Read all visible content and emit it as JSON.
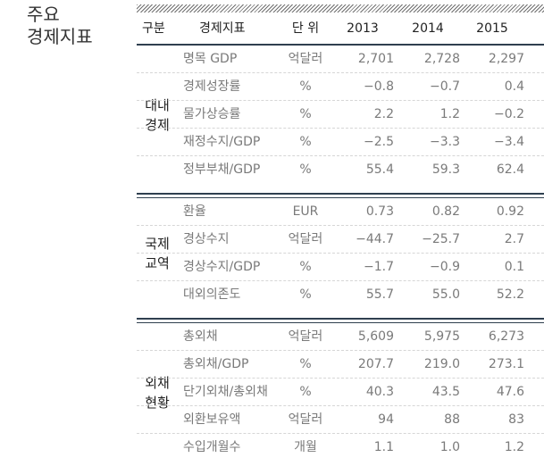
{
  "side_title": [
    "주요",
    "경제지표"
  ],
  "header": {
    "group": "구분",
    "indicator": "경제지표",
    "unit": "단 위",
    "years": [
      "2013",
      "2014",
      "2015"
    ]
  },
  "sections": [
    {
      "label": [
        "대내",
        "경제"
      ],
      "rows": [
        {
          "indicator": "명목 GDP",
          "unit": "억달러",
          "values": [
            "2,701",
            "2,728",
            "2,297"
          ]
        },
        {
          "indicator": "경제성장률",
          "unit": "%",
          "values": [
            "−0.8",
            "−0.7",
            "0.4"
          ]
        },
        {
          "indicator": "물가상승률",
          "unit": "%",
          "values": [
            "2.2",
            "1.2",
            "−0.2"
          ]
        },
        {
          "indicator": "재정수지/GDP",
          "unit": "%",
          "values": [
            "−2.5",
            "−3.3",
            "−3.4"
          ]
        },
        {
          "indicator": "정부부채/GDP",
          "unit": "%",
          "values": [
            "55.4",
            "59.3",
            "62.4"
          ]
        }
      ]
    },
    {
      "label": [
        "국제",
        "교역"
      ],
      "rows": [
        {
          "indicator": "환율",
          "unit": "EUR",
          "values": [
            "0.73",
            "0.82",
            "0.92"
          ]
        },
        {
          "indicator": "경상수지",
          "unit": "억달러",
          "values": [
            "−44.7",
            "−25.7",
            "2.7"
          ]
        },
        {
          "indicator": "경상수지/GDP",
          "unit": "%",
          "values": [
            "−1.7",
            "−0.9",
            "0.1"
          ]
        },
        {
          "indicator": "대외의존도",
          "unit": "%",
          "values": [
            "55.7",
            "55.0",
            "52.2"
          ]
        }
      ]
    },
    {
      "label": [
        "외채",
        "현황"
      ],
      "rows": [
        {
          "indicator": "총외채",
          "unit": "억달러",
          "values": [
            "5,609",
            "5,975",
            "6,273"
          ]
        },
        {
          "indicator": "총외채/GDP",
          "unit": "%",
          "values": [
            "207.7",
            "219.0",
            "273.1"
          ]
        },
        {
          "indicator": "단기외채/총외채",
          "unit": "%",
          "values": [
            "40.3",
            "43.5",
            "47.6"
          ]
        },
        {
          "indicator": "외환보유액",
          "unit": "억달러",
          "values": [
            "94",
            "88",
            "83"
          ]
        },
        {
          "indicator": "수입개월수",
          "unit": "개월",
          "values": [
            "1.1",
            "1.0",
            "1.2"
          ]
        }
      ]
    }
  ]
}
